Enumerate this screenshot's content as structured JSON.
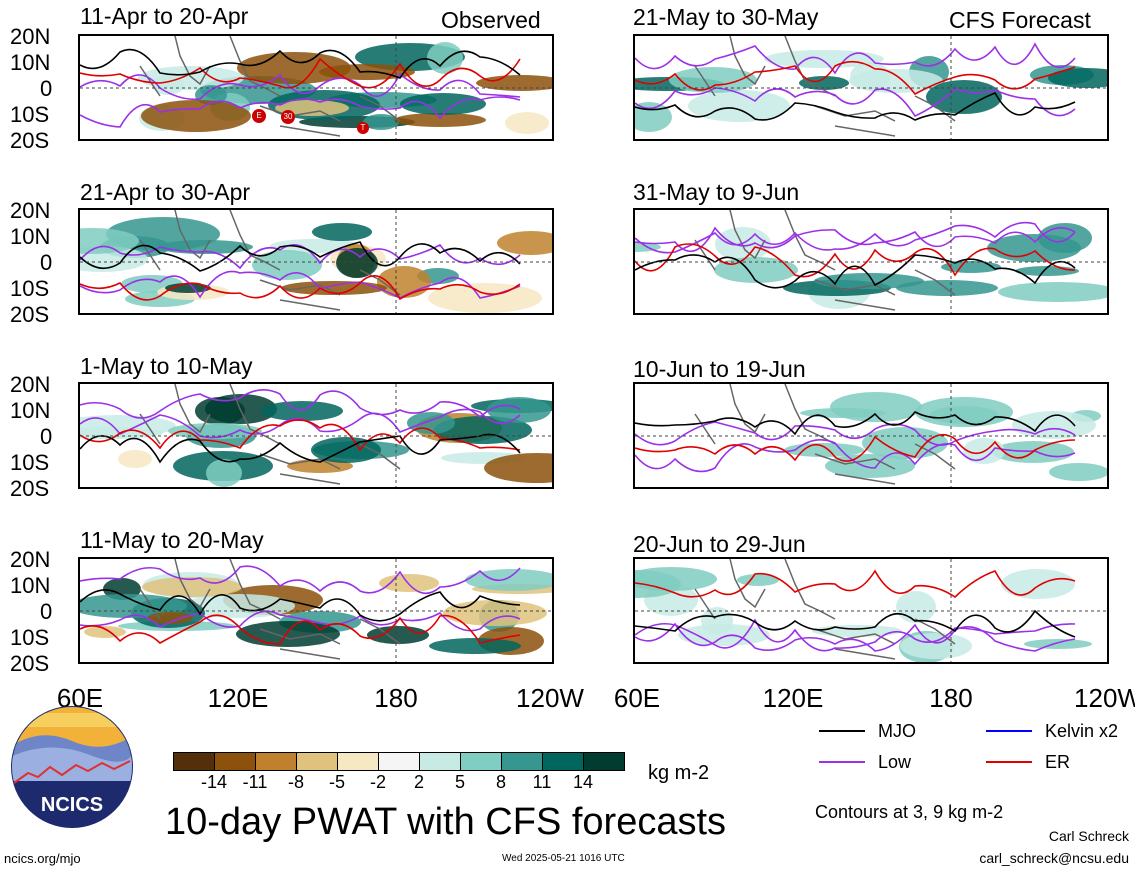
{
  "headers": {
    "observed": "Observed",
    "forecast": "CFS Forecast"
  },
  "lat_labels": [
    "20N",
    "10N",
    "0",
    "10S",
    "20S"
  ],
  "lon_labels": [
    "60E",
    "120E",
    "180",
    "120W"
  ],
  "panels": [
    {
      "title": "11-Apr to 20-Apr",
      "column": "observed"
    },
    {
      "title": "21-Apr to 30-Apr",
      "column": "observed"
    },
    {
      "title": "1-May to 10-May",
      "column": "observed"
    },
    {
      "title": "11-May to 20-May",
      "column": "observed"
    },
    {
      "title": "21-May to 30-May",
      "column": "forecast"
    },
    {
      "title": "31-May to 9-Jun",
      "column": "forecast"
    },
    {
      "title": "10-Jun to 19-Jun",
      "column": "forecast"
    },
    {
      "title": "20-Jun to 29-Jun",
      "column": "forecast"
    }
  ],
  "storm_markers": [
    "E",
    "30",
    "T"
  ],
  "colorbar": {
    "colors": [
      "#54300a",
      "#8c510a",
      "#bf812d",
      "#dfc27d",
      "#f6e8c3",
      "#f5f5f5",
      "#c7eae5",
      "#80cdc1",
      "#35978f",
      "#01665e",
      "#003c30"
    ],
    "labels": [
      "-14",
      "-11",
      "-8",
      "-5",
      "-2",
      "2",
      "5",
      "8",
      "11",
      "14"
    ],
    "units": "kg m-2"
  },
  "legend": {
    "mjo": {
      "label": "MJO",
      "color": "#000000"
    },
    "kelvin": {
      "label": "Kelvin x2",
      "color": "#0000ff"
    },
    "low": {
      "label": "Low",
      "color": "#9b30e8"
    },
    "er": {
      "label": "ER",
      "color": "#e00000"
    },
    "contours_note": "Contours at 3, 9 kg m-2"
  },
  "main_title": "10-day PWAT with CFS forecasts",
  "logo_text": "NCICS",
  "footer": {
    "url": "ncics.org/mjo",
    "timestamp": "Wed 2025-05-21 1016 UTC",
    "author": "Carl Schreck",
    "email": "carl_schreck@ncsu.edu"
  }
}
